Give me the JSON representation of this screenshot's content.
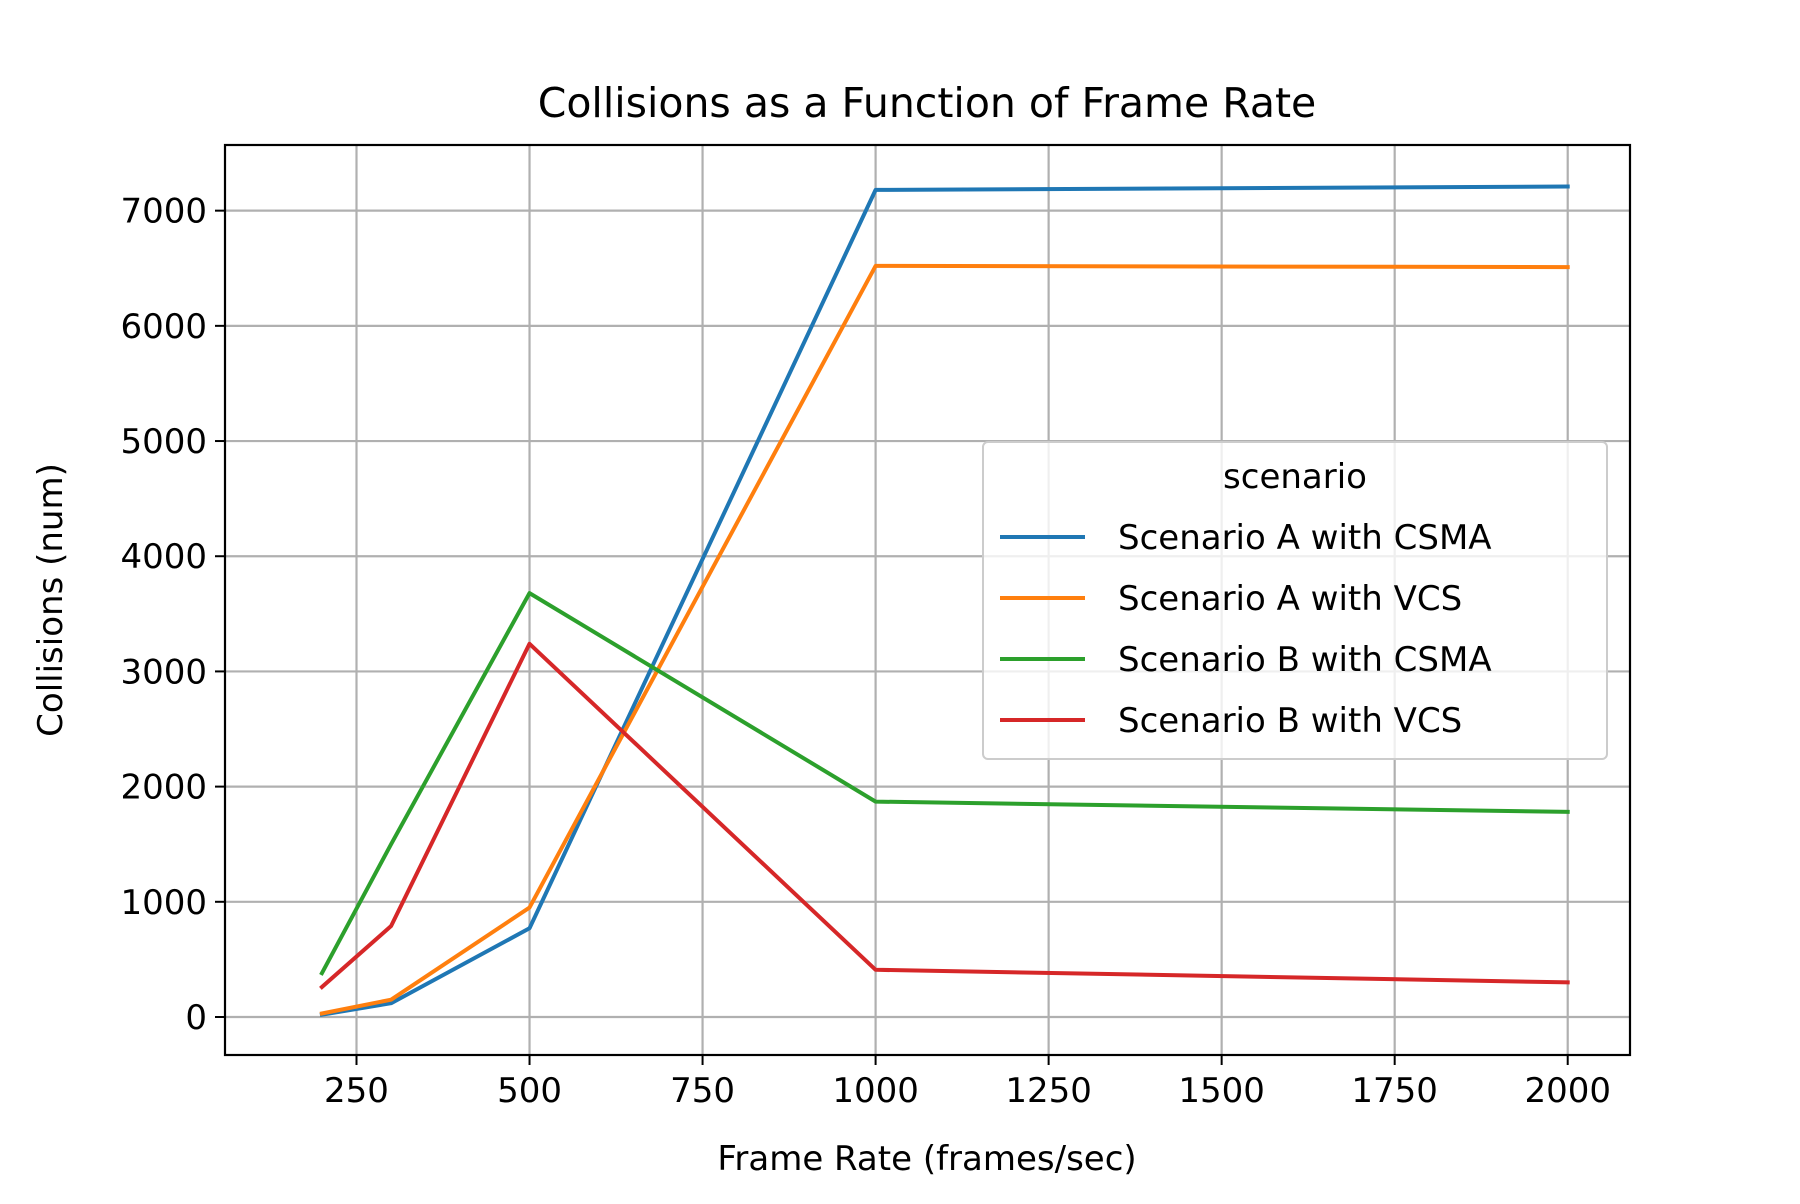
{
  "chart_data": {
    "type": "line",
    "title": "Collisions as a Function of Frame Rate",
    "xlabel": "Frame Rate (frames/sec)",
    "ylabel": "Collisions (num)",
    "x": [
      200,
      300,
      500,
      1000,
      2000
    ],
    "xlim": [
      60,
      2090
    ],
    "ylim": [
      -330,
      7570
    ],
    "xticks": [
      250,
      500,
      750,
      1000,
      1250,
      1500,
      1750,
      2000
    ],
    "yticks": [
      0,
      1000,
      2000,
      3000,
      4000,
      5000,
      6000,
      7000
    ],
    "grid": true,
    "legend": {
      "title": "scenario",
      "placement": "center-right"
    },
    "series": [
      {
        "name": "Scenario A with  CSMA",
        "color": "#1f77b4",
        "values": [
          20,
          120,
          770,
          7180,
          7210
        ]
      },
      {
        "name": "Scenario A with VCS",
        "color": "#ff7f0e",
        "values": [
          30,
          150,
          950,
          6520,
          6510
        ]
      },
      {
        "name": "Scenario B with CSMA",
        "color": "#2ca02c",
        "values": [
          380,
          1500,
          3680,
          1870,
          1780
        ]
      },
      {
        "name": "Scenario B with VCS",
        "color": "#d62728",
        "values": [
          260,
          790,
          3240,
          410,
          300
        ]
      }
    ]
  }
}
